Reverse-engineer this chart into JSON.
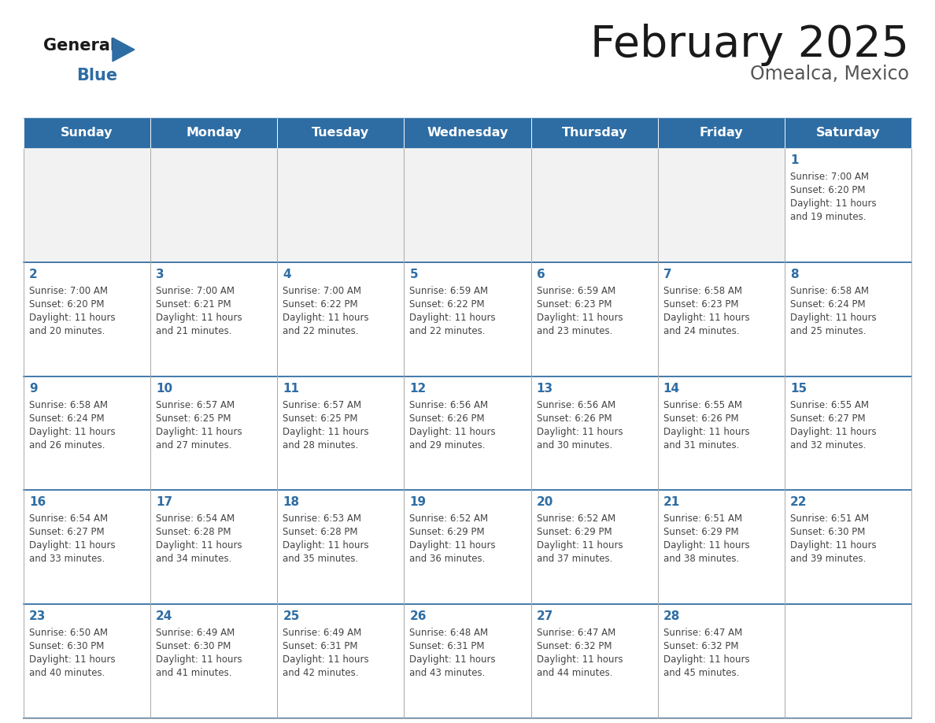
{
  "title": "February 2025",
  "subtitle": "Omealca, Mexico",
  "days_of_week": [
    "Sunday",
    "Monday",
    "Tuesday",
    "Wednesday",
    "Thursday",
    "Friday",
    "Saturday"
  ],
  "header_bg": "#2E6DA4",
  "header_text": "#FFFFFF",
  "cell_bg_light": "#F2F2F2",
  "cell_bg_white": "#FFFFFF",
  "cell_border": "#AAAAAA",
  "day_num_color": "#2E6DA4",
  "detail_color": "#444444",
  "title_color": "#1a1a1a",
  "subtitle_color": "#555555",
  "logo_general_color": "#1a1a1a",
  "logo_blue_color": "#2E6DA4",
  "calendar_data": [
    [
      null,
      null,
      null,
      null,
      null,
      null,
      1
    ],
    [
      2,
      3,
      4,
      5,
      6,
      7,
      8
    ],
    [
      9,
      10,
      11,
      12,
      13,
      14,
      15
    ],
    [
      16,
      17,
      18,
      19,
      20,
      21,
      22
    ],
    [
      23,
      24,
      25,
      26,
      27,
      28,
      null
    ]
  ],
  "sunrise": {
    "1": "7:00 AM",
    "2": "7:00 AM",
    "3": "7:00 AM",
    "4": "7:00 AM",
    "5": "6:59 AM",
    "6": "6:59 AM",
    "7": "6:58 AM",
    "8": "6:58 AM",
    "9": "6:58 AM",
    "10": "6:57 AM",
    "11": "6:57 AM",
    "12": "6:56 AM",
    "13": "6:56 AM",
    "14": "6:55 AM",
    "15": "6:55 AM",
    "16": "6:54 AM",
    "17": "6:54 AM",
    "18": "6:53 AM",
    "19": "6:52 AM",
    "20": "6:52 AM",
    "21": "6:51 AM",
    "22": "6:51 AM",
    "23": "6:50 AM",
    "24": "6:49 AM",
    "25": "6:49 AM",
    "26": "6:48 AM",
    "27": "6:47 AM",
    "28": "6:47 AM"
  },
  "sunset": {
    "1": "6:20 PM",
    "2": "6:20 PM",
    "3": "6:21 PM",
    "4": "6:22 PM",
    "5": "6:22 PM",
    "6": "6:23 PM",
    "7": "6:23 PM",
    "8": "6:24 PM",
    "9": "6:24 PM",
    "10": "6:25 PM",
    "11": "6:25 PM",
    "12": "6:26 PM",
    "13": "6:26 PM",
    "14": "6:26 PM",
    "15": "6:27 PM",
    "16": "6:27 PM",
    "17": "6:28 PM",
    "18": "6:28 PM",
    "19": "6:29 PM",
    "20": "6:29 PM",
    "21": "6:29 PM",
    "22": "6:30 PM",
    "23": "6:30 PM",
    "24": "6:30 PM",
    "25": "6:31 PM",
    "26": "6:31 PM",
    "27": "6:32 PM",
    "28": "6:32 PM"
  },
  "daylight_hours": {
    "1": "11 hours\nand 19 minutes.",
    "2": "11 hours\nand 20 minutes.",
    "3": "11 hours\nand 21 minutes.",
    "4": "11 hours\nand 22 minutes.",
    "5": "11 hours\nand 22 minutes.",
    "6": "11 hours\nand 23 minutes.",
    "7": "11 hours\nand 24 minutes.",
    "8": "11 hours\nand 25 minutes.",
    "9": "11 hours\nand 26 minutes.",
    "10": "11 hours\nand 27 minutes.",
    "11": "11 hours\nand 28 minutes.",
    "12": "11 hours\nand 29 minutes.",
    "13": "11 hours\nand 30 minutes.",
    "14": "11 hours\nand 31 minutes.",
    "15": "11 hours\nand 32 minutes.",
    "16": "11 hours\nand 33 minutes.",
    "17": "11 hours\nand 34 minutes.",
    "18": "11 hours\nand 35 minutes.",
    "19": "11 hours\nand 36 minutes.",
    "20": "11 hours\nand 37 minutes.",
    "21": "11 hours\nand 38 minutes.",
    "22": "11 hours\nand 39 minutes.",
    "23": "11 hours\nand 40 minutes.",
    "24": "11 hours\nand 41 minutes.",
    "25": "11 hours\nand 42 minutes.",
    "26": "11 hours\nand 43 minutes.",
    "27": "11 hours\nand 44 minutes.",
    "28": "11 hours\nand 45 minutes."
  }
}
